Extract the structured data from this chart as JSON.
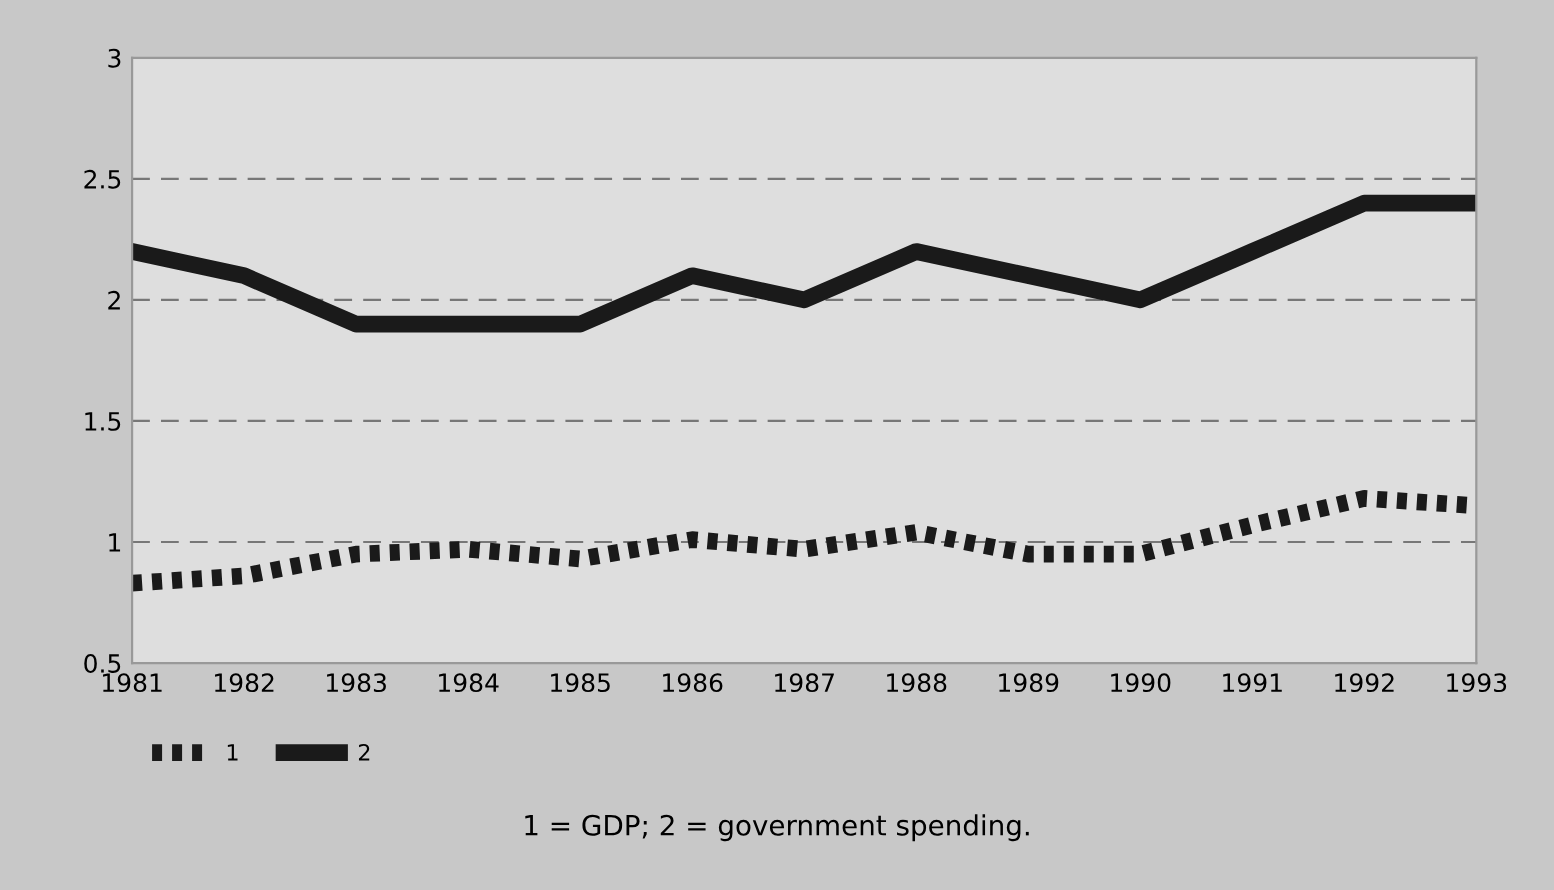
{
  "chart_data": {
    "type": "line",
    "categories": [
      "1981",
      "1982",
      "1983",
      "1984",
      "1985",
      "1986",
      "1987",
      "1988",
      "1989",
      "1990",
      "1991",
      "1992",
      "1993"
    ],
    "series": [
      {
        "name": "1",
        "color": "#1a1a1a",
        "line_style": "dotted",
        "values": [
          0.83,
          0.86,
          0.95,
          0.97,
          0.93,
          1.01,
          0.97,
          1.04,
          0.95,
          0.95,
          1.07,
          1.18,
          1.15
        ]
      },
      {
        "name": "2",
        "color": "#1a1a1a",
        "line_style": "solid",
        "values": [
          2.2,
          2.1,
          1.9,
          1.9,
          1.9,
          2.1,
          2.0,
          2.2,
          2.1,
          2.0,
          2.2,
          2.4,
          2.4
        ]
      }
    ],
    "ylim": [
      0.5,
      3
    ],
    "yticks": [
      0.5,
      1,
      1.5,
      2,
      2.5,
      3
    ],
    "grid": "y",
    "legend": "bottom left",
    "annotations": [
      "1 = GDP; 2 = government spending."
    ]
  }
}
